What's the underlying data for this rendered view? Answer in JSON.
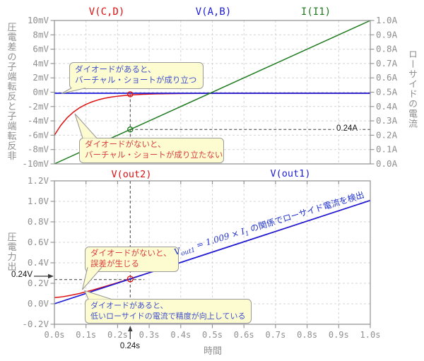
{
  "colors": {
    "red": "#dd1111",
    "blue": "#1c1cd9",
    "green": "#1d7a1d",
    "callout_red": "#d94040",
    "callout_blue": "#4050cc",
    "formula_blue": "#2233cc",
    "grid": "#d4d4d4",
    "frame": "#8f8f8f",
    "tick_text": "#8f8f8f",
    "annotation": "#3c3c3c",
    "callout_bg": "#fdfbd0",
    "callout_border": "#9a9a9a",
    "marker_text": "#111111",
    "background": "#ffffff"
  },
  "panels": {
    "top": {
      "legend": [
        {
          "label": "V(C,D)",
          "color": "#dd1111"
        },
        {
          "label": "V(A,B)",
          "color": "#1c1cd9"
        },
        {
          "label": "I(I1)",
          "color": "#1d7a1d"
        }
      ],
      "ylabel_left": "非反転端子と反転端子の差電圧",
      "ylabel_right": "ローサイドの電流",
      "callout_with_diode": {
        "line1": "ダイオードがあると、",
        "line2": "バーチャル・ショートが成り立つ"
      },
      "callout_without_diode": {
        "line1": "ダイオードがないと、",
        "line2": "バーチャル・ショートが成り立たない"
      },
      "current_marker_label": "0.24A"
    },
    "bottom": {
      "legend": [
        {
          "label": "V(out2)",
          "color": "#dd1111"
        },
        {
          "label": "V(out1)",
          "color": "#1c1cd9"
        }
      ],
      "ylabel_left": "出力電圧",
      "xlabel": "時間",
      "formula": {
        "v1": "V",
        "s1": "out1",
        "eq": " = 1.009 × ",
        "v2": "I",
        "s2": "1",
        "tail": " の関係でローサイド電流を検出"
      },
      "callout_error": {
        "line1": "ダイオードがないと、",
        "line2": "誤差が生じる"
      },
      "callout_accuracy": {
        "line1": "ダイオードがあると、",
        "line2": "低いローサイドの電流で精度が向上している"
      },
      "voltage_marker_label": "0.24V",
      "time_marker_label": "0.24s"
    }
  },
  "chart_data": [
    {
      "type": "line",
      "title": "",
      "xlabel": "",
      "xlim": [
        0,
        1
      ],
      "x_unit": "s",
      "ylim_left": [
        -10,
        10
      ],
      "y_left_unit": "mV",
      "ylim_right": [
        0,
        1
      ],
      "y_right_unit": "A",
      "grid": true,
      "yticks_left": [
        "10mV",
        "8mV",
        "6mV",
        "4mV",
        "2mV",
        "0mV",
        "-2mV",
        "-4mV",
        "-6mV",
        "-8mV",
        "-10mV"
      ],
      "yticks_right": [
        "1.0A",
        "0.9A",
        "0.8A",
        "0.7A",
        "0.6A",
        "0.5A",
        "0.4A",
        "0.3A",
        "0.2A",
        "0.1A",
        "0.0A"
      ],
      "series": [
        {
          "name": "V(C,D)",
          "axis": "left",
          "color": "#dd1111",
          "points": [
            [
              0,
              -6.0
            ],
            [
              0.02,
              -4.63
            ],
            [
              0.04,
              -3.58
            ],
            [
              0.06,
              -2.78
            ],
            [
              0.08,
              -2.16
            ],
            [
              0.1,
              -1.69
            ],
            [
              0.12,
              -1.33
            ],
            [
              0.14,
              -1.05
            ],
            [
              0.16,
              -0.84
            ],
            [
              0.18,
              -0.68
            ],
            [
              0.2,
              -0.56
            ],
            [
              0.24,
              -0.39
            ],
            [
              0.28,
              -0.29
            ],
            [
              0.32,
              -0.24
            ],
            [
              0.4,
              -0.18
            ],
            [
              0.5,
              -0.16
            ],
            [
              0.7,
              -0.15
            ],
            [
              1,
              -0.15
            ]
          ]
        },
        {
          "name": "V(A,B)",
          "axis": "left",
          "color": "#1c1cd9",
          "points": [
            [
              0,
              -0.15
            ],
            [
              1,
              -0.15
            ]
          ]
        },
        {
          "name": "I(I1)",
          "axis": "right",
          "color": "#1d7a1d",
          "points": [
            [
              0,
              0
            ],
            [
              1,
              1
            ]
          ]
        }
      ],
      "markers": [
        {
          "t": 0.24,
          "value": -0.3,
          "axis": "left",
          "color": "#dd1111",
          "label": ""
        },
        {
          "t": 0.24,
          "value": 0.24,
          "axis": "right",
          "color": "#1d7a1d",
          "label": "0.24A"
        }
      ]
    },
    {
      "type": "line",
      "title": "",
      "xlabel": "時間",
      "ylabel": "出力電圧",
      "xlim": [
        0,
        1
      ],
      "ylim": [
        -0.2,
        1.2
      ],
      "grid": true,
      "xticks": [
        "0.0s",
        "0.1s",
        "0.2s",
        "0.3s",
        "0.4s",
        "0.5s",
        "0.6s",
        "0.7s",
        "0.8s",
        "0.9s",
        "1.0s"
      ],
      "yticks": [
        "1.2V",
        "1.0V",
        "0.8V",
        "0.6V",
        "0.4V",
        "0.2V",
        "0.0V",
        "-0.2V"
      ],
      "series": [
        {
          "name": "V(out2)",
          "color": "#dd1111",
          "points": [
            [
              0,
              0.06
            ],
            [
              0.02,
              0.066
            ],
            [
              0.04,
              0.076
            ],
            [
              0.06,
              0.088
            ],
            [
              0.08,
              0.101
            ],
            [
              0.1,
              0.117
            ],
            [
              0.12,
              0.133
            ],
            [
              0.14,
              0.151
            ],
            [
              0.16,
              0.169
            ],
            [
              0.18,
              0.187
            ],
            [
              0.2,
              0.206
            ],
            [
              0.24,
              0.245
            ],
            [
              0.28,
              0.284
            ],
            [
              0.32,
              0.324
            ],
            [
              0.4,
              0.404
            ],
            [
              0.5,
              0.505
            ],
            [
              0.6,
              0.605
            ],
            [
              0.8,
              0.807
            ],
            [
              1,
              1.009
            ]
          ]
        },
        {
          "name": "V(out1)",
          "color": "#1c1cd9",
          "points": [
            [
              0,
              0
            ],
            [
              1,
              1.009
            ]
          ]
        }
      ],
      "markers": [
        {
          "t": 0.24,
          "value": 0.242,
          "color": "#dd1111",
          "label_v": "0.24V",
          "label_t": "0.24s"
        }
      ]
    }
  ]
}
